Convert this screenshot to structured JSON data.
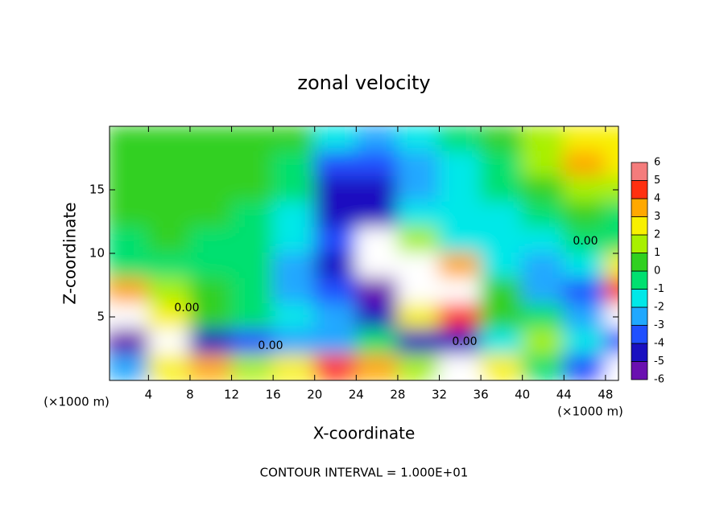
{
  "chart_data": {
    "type": "heatmap",
    "title": "zonal velocity",
    "x_label": "X-coordinate",
    "y_label": "Z-coordinate",
    "x_unit": "(×1000 m)",
    "footer": "CONTOUR INTERVAL = 1.000E+01",
    "contour_label": "0.00",
    "xlim": [
      0.25,
      49.25
    ],
    "ylim": [
      0,
      20
    ],
    "xticks": [
      4,
      8,
      12,
      16,
      20,
      24,
      28,
      32,
      36,
      40,
      44,
      48
    ],
    "yticks": [
      5,
      10,
      15
    ],
    "x": [
      2,
      6,
      10,
      14,
      18,
      22,
      26,
      30,
      34,
      38,
      42,
      46,
      50
    ],
    "y": [
      19,
      17,
      15,
      13,
      11,
      9,
      7,
      5,
      3,
      1
    ],
    "z": [
      [
        1,
        1,
        1,
        1,
        0.5,
        -1,
        -2,
        -1,
        0,
        1,
        2,
        3,
        3
      ],
      [
        1,
        1,
        1,
        1,
        0,
        -3,
        -3,
        -2,
        -1,
        0,
        2,
        4,
        3
      ],
      [
        1,
        1,
        1,
        1,
        0,
        -4,
        -4,
        -2,
        -1,
        0,
        1,
        2,
        2
      ],
      [
        1,
        1,
        1,
        0,
        -1,
        -4,
        -4,
        -1,
        -1,
        -1,
        0,
        1,
        0
      ],
      [
        0,
        1,
        0,
        0,
        -1,
        -3,
        8,
        2,
        -1,
        -1,
        -1,
        0,
        0
      ],
      [
        0,
        0,
        0,
        0,
        -2,
        -4,
        8,
        8,
        4,
        -1,
        -2,
        -1,
        3
      ],
      [
        4,
        2,
        1,
        0,
        -2,
        -3,
        -5,
        8,
        8,
        1,
        -2,
        -3,
        5
      ],
      [
        8,
        3,
        1,
        0,
        -1,
        -2,
        -4,
        3,
        5,
        1,
        0,
        -2,
        8
      ],
      [
        -5,
        8,
        -4,
        -3,
        -2,
        -2,
        0,
        -4,
        -4,
        -1,
        2,
        -1,
        -3
      ],
      [
        -2,
        3,
        4,
        2,
        3,
        5,
        4,
        2,
        8,
        3,
        0,
        -3,
        8
      ]
    ],
    "colorbar": {
      "levels": [
        -6,
        -5,
        -4,
        -3,
        -2,
        -1,
        0,
        1,
        2,
        3,
        4,
        5,
        6
      ],
      "colors": [
        "#6a10b0",
        "#1a10c0",
        "#2050ff",
        "#20a8ff",
        "#00e8e8",
        "#00e070",
        "#30d020",
        "#a8f000",
        "#f8f000",
        "#ffa800",
        "#ff3010",
        "#f47c7c"
      ]
    },
    "out_of_range_color": "#ffffff"
  }
}
